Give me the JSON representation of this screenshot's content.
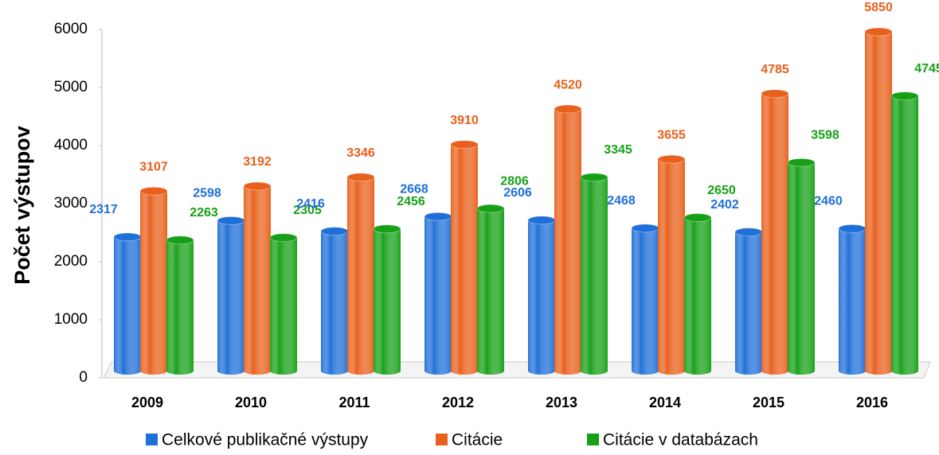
{
  "chart_data": {
    "type": "bar",
    "y_label": "Počet výstupov",
    "categories": [
      "2009",
      "2010",
      "2011",
      "2012",
      "2013",
      "2014",
      "2015",
      "2016"
    ],
    "series": [
      {
        "name": "Celkové publikačné výstupy",
        "color": "#1f6fd8",
        "values": [
          2317,
          2598,
          2416,
          2668,
          2606,
          2468,
          2402,
          2460
        ]
      },
      {
        "name": "Citácie",
        "color": "#e8601c",
        "values": [
          3107,
          3192,
          3346,
          3910,
          4520,
          3655,
          4785,
          5850
        ]
      },
      {
        "name": "Citácie v databázach",
        "color": "#17a017",
        "values": [
          2263,
          2305,
          2456,
          2806,
          3345,
          2650,
          3598,
          4745
        ]
      }
    ],
    "ylim": [
      0,
      6000
    ],
    "yticks": [
      0,
      1000,
      2000,
      3000,
      4000,
      5000,
      6000
    ],
    "legend": "bottom"
  }
}
